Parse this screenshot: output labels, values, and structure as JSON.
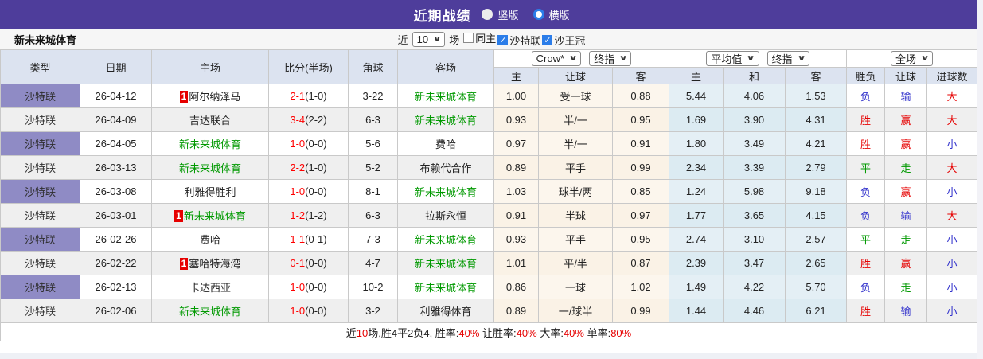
{
  "title_bar": {
    "title": "近期战绩",
    "radios": [
      {
        "label": "竖版",
        "selected": false
      },
      {
        "label": "横版",
        "selected": true
      }
    ]
  },
  "filter_bar": {
    "team_name": "新未来城体育",
    "near_label": "近",
    "near_value": "10",
    "games_label": "场",
    "checkboxes": [
      {
        "label": "同主",
        "checked": false
      },
      {
        "label": "沙特联",
        "checked": true
      },
      {
        "label": "沙王冠",
        "checked": true
      }
    ]
  },
  "table": {
    "group_selects": {
      "odds_company": "Crow*",
      "odds_time": "终指",
      "avg_company": "平均值",
      "avg_time": "终指",
      "scope": "全场"
    },
    "main_columns": [
      "类型",
      "日期",
      "主场",
      "比分(半场)",
      "角球",
      "客场"
    ],
    "sub_columns": [
      "主",
      "让球",
      "客",
      "主",
      "和",
      "客",
      "胜负",
      "让球",
      "进球数"
    ],
    "rows": [
      {
        "league": "沙特联",
        "date": "26-04-12",
        "home": {
          "rank": "1",
          "name": "阿尔纳泽马",
          "green": false
        },
        "score": "2-1",
        "half": "(1-0)",
        "corner": "3-22",
        "away": {
          "name": "新未来城体育",
          "green": true
        },
        "hcp": [
          "1.00",
          "受一球",
          "0.88"
        ],
        "avg": [
          "5.44",
          "4.06",
          "1.53"
        ],
        "results": [
          {
            "t": "负",
            "c": "blue"
          },
          {
            "t": "输",
            "c": "blue"
          },
          {
            "t": "大",
            "c": "red"
          }
        ]
      },
      {
        "league": "沙特联",
        "date": "26-04-09",
        "home": {
          "rank": "",
          "name": "吉达联合",
          "green": false
        },
        "score": "3-4",
        "half": "(2-2)",
        "corner": "6-3",
        "away": {
          "name": "新未来城体育",
          "green": true
        },
        "hcp": [
          "0.93",
          "半/一",
          "0.95"
        ],
        "avg": [
          "1.69",
          "3.90",
          "4.31"
        ],
        "results": [
          {
            "t": "胜",
            "c": "red"
          },
          {
            "t": "赢",
            "c": "red"
          },
          {
            "t": "大",
            "c": "red"
          }
        ]
      },
      {
        "league": "沙特联",
        "date": "26-04-05",
        "home": {
          "rank": "",
          "name": "新未来城体育",
          "green": true
        },
        "score": "1-0",
        "half": "(0-0)",
        "corner": "5-6",
        "away": {
          "name": "费哈",
          "green": false
        },
        "hcp": [
          "0.97",
          "半/一",
          "0.91"
        ],
        "avg": [
          "1.80",
          "3.49",
          "4.21"
        ],
        "results": [
          {
            "t": "胜",
            "c": "red"
          },
          {
            "t": "赢",
            "c": "red"
          },
          {
            "t": "小",
            "c": "blue"
          }
        ]
      },
      {
        "league": "沙特联",
        "date": "26-03-13",
        "home": {
          "rank": "",
          "name": "新未来城体育",
          "green": true
        },
        "score": "2-2",
        "half": "(1-0)",
        "corner": "5-2",
        "away": {
          "name": "布赖代合作",
          "green": false
        },
        "hcp": [
          "0.89",
          "平手",
          "0.99"
        ],
        "avg": [
          "2.34",
          "3.39",
          "2.79"
        ],
        "results": [
          {
            "t": "平",
            "c": "green"
          },
          {
            "t": "走",
            "c": "green"
          },
          {
            "t": "大",
            "c": "red"
          }
        ]
      },
      {
        "league": "沙特联",
        "date": "26-03-08",
        "home": {
          "rank": "",
          "name": "利雅得胜利",
          "green": false
        },
        "score": "1-0",
        "half": "(0-0)",
        "corner": "8-1",
        "away": {
          "name": "新未来城体育",
          "green": true
        },
        "hcp": [
          "1.03",
          "球半/两",
          "0.85"
        ],
        "avg": [
          "1.24",
          "5.98",
          "9.18"
        ],
        "results": [
          {
            "t": "负",
            "c": "blue"
          },
          {
            "t": "赢",
            "c": "red"
          },
          {
            "t": "小",
            "c": "blue"
          }
        ]
      },
      {
        "league": "沙特联",
        "date": "26-03-01",
        "home": {
          "rank": "1",
          "name": "新未来城体育",
          "green": true
        },
        "score": "1-2",
        "half": "(1-2)",
        "corner": "6-3",
        "away": {
          "name": "拉斯永恒",
          "green": false
        },
        "hcp": [
          "0.91",
          "半球",
          "0.97"
        ],
        "avg": [
          "1.77",
          "3.65",
          "4.15"
        ],
        "results": [
          {
            "t": "负",
            "c": "blue"
          },
          {
            "t": "输",
            "c": "blue"
          },
          {
            "t": "大",
            "c": "red"
          }
        ]
      },
      {
        "league": "沙特联",
        "date": "26-02-26",
        "home": {
          "rank": "",
          "name": "费哈",
          "green": false
        },
        "score": "1-1",
        "half": "(0-1)",
        "corner": "7-3",
        "away": {
          "name": "新未来城体育",
          "green": true
        },
        "hcp": [
          "0.93",
          "平手",
          "0.95"
        ],
        "avg": [
          "2.74",
          "3.10",
          "2.57"
        ],
        "results": [
          {
            "t": "平",
            "c": "green"
          },
          {
            "t": "走",
            "c": "green"
          },
          {
            "t": "小",
            "c": "blue"
          }
        ]
      },
      {
        "league": "沙特联",
        "date": "26-02-22",
        "home": {
          "rank": "1",
          "name": "塞哈特海湾",
          "green": false
        },
        "score": "0-1",
        "half": "(0-0)",
        "corner": "4-7",
        "away": {
          "name": "新未来城体育",
          "green": true
        },
        "hcp": [
          "1.01",
          "平/半",
          "0.87"
        ],
        "avg": [
          "2.39",
          "3.47",
          "2.65"
        ],
        "results": [
          {
            "t": "胜",
            "c": "red"
          },
          {
            "t": "赢",
            "c": "red"
          },
          {
            "t": "小",
            "c": "blue"
          }
        ]
      },
      {
        "league": "沙特联",
        "date": "26-02-13",
        "home": {
          "rank": "",
          "name": "卡达西亚",
          "green": false
        },
        "score": "1-0",
        "half": "(0-0)",
        "corner": "10-2",
        "away": {
          "name": "新未来城体育",
          "green": true
        },
        "hcp": [
          "0.86",
          "一球",
          "1.02"
        ],
        "avg": [
          "1.49",
          "4.22",
          "5.70"
        ],
        "results": [
          {
            "t": "负",
            "c": "blue"
          },
          {
            "t": "走",
            "c": "green"
          },
          {
            "t": "小",
            "c": "blue"
          }
        ]
      },
      {
        "league": "沙特联",
        "date": "26-02-06",
        "home": {
          "rank": "",
          "name": "新未来城体育",
          "green": true
        },
        "score": "1-0",
        "half": "(0-0)",
        "corner": "3-2",
        "away": {
          "name": "利雅得体育",
          "green": false
        },
        "hcp": [
          "0.89",
          "一/球半",
          "0.99"
        ],
        "avg": [
          "1.44",
          "4.46",
          "6.21"
        ],
        "results": [
          {
            "t": "胜",
            "c": "red"
          },
          {
            "t": "输",
            "c": "blue"
          },
          {
            "t": "小",
            "c": "blue"
          }
        ]
      }
    ]
  },
  "summary": {
    "segments": [
      {
        "text": "近",
        "red": false
      },
      {
        "text": "10",
        "red": true
      },
      {
        "text": "场,胜4平2负4, 胜率:",
        "red": false
      },
      {
        "text": "40%",
        "red": true
      },
      {
        "text": " 让胜率:",
        "red": false
      },
      {
        "text": "40%",
        "red": true
      },
      {
        "text": " 大率:",
        "red": false
      },
      {
        "text": "40%",
        "red": true
      },
      {
        "text": " 单率:",
        "red": false
      },
      {
        "text": "80%",
        "red": true
      }
    ]
  },
  "colors": {
    "accent_purple": "#4e3d9b",
    "league_cell_bg": "#8f8bc5",
    "header_bg": "#dce3f0",
    "row_alt_bg": "#efefef",
    "handicap_col_bg": "#fcf6ed",
    "avg_col_bg": "#e4eff5",
    "team_green": "#009900",
    "score_red": "#ff0000",
    "result_red": "#e60000",
    "result_green": "#009900",
    "result_blue": "#3333cc",
    "check_blue": "#2b7de9",
    "summary_red": "#e60000"
  }
}
